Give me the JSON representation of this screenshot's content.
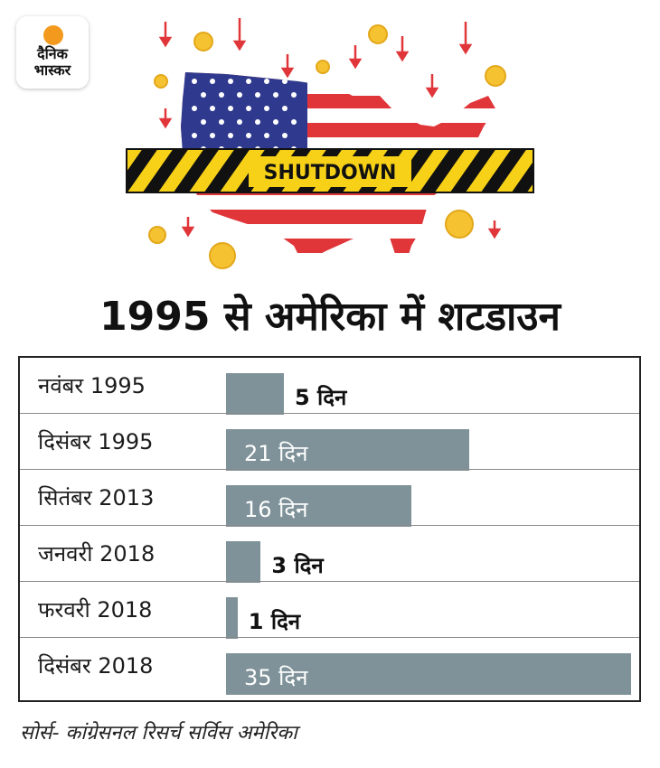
{
  "brand": {
    "line1": "दैनिक",
    "line2": "भास्कर",
    "accent": "#f39a1e"
  },
  "hero": {
    "banner_text": "SHUTDOWN",
    "banner_color": "#f7d117",
    "flag_red": "#e0363a",
    "flag_blue": "#2f3a8f",
    "coin_color": "#f5c231"
  },
  "title": "1995 से अमेरिका में शटडाउन",
  "chart_data": {
    "type": "bar",
    "orientation": "horizontal",
    "title": "1995 से अमेरिका में शटडाउन",
    "categories": [
      "नवंबर 1995",
      "दिसंबर 1995",
      "सितंबर 2013",
      "जनवरी 2018",
      "फरवरी 2018",
      "दिसंबर 2018"
    ],
    "values": [
      5,
      21,
      16,
      3,
      1,
      35
    ],
    "value_labels": [
      "5 दिन",
      "21 दिन",
      "16 दिन",
      "3 दिन",
      "1 दिन",
      "35 दिन"
    ],
    "unit": "दिन",
    "xlim": [
      0,
      35
    ],
    "bar_color": "#7f9299",
    "grid": false
  },
  "source": "सोर्स- कांग्रेसनल रिसर्च सर्विस अमेरिका"
}
